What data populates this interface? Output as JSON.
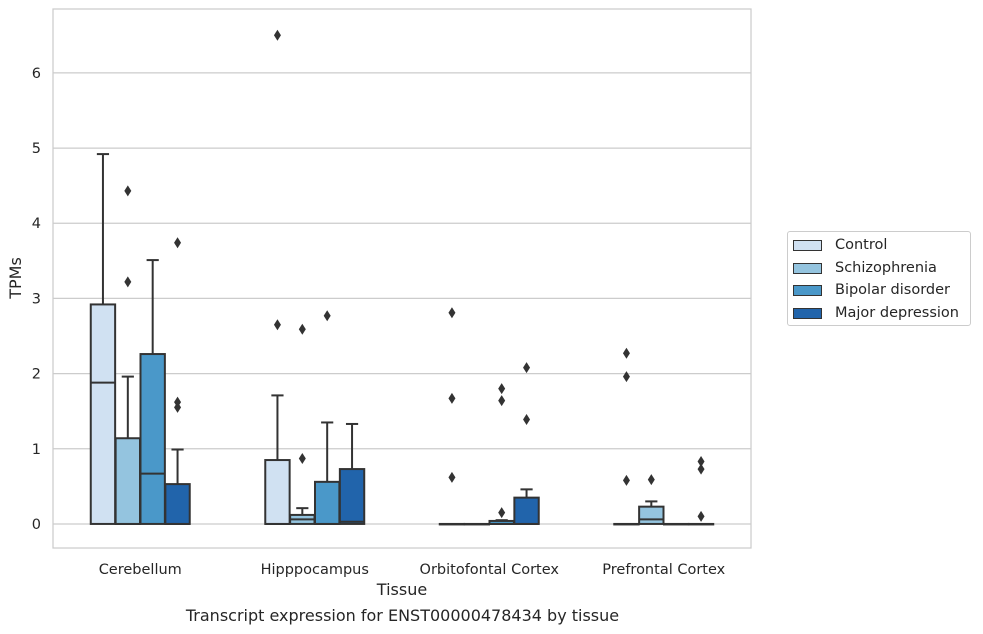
{
  "chart_data": {
    "type": "boxplot",
    "caption": "Transcript expression for ENST00000478434 by tissue",
    "xlabel": "Tissue",
    "ylabel": "TPMs",
    "ylim": [
      -0.32,
      6.85
    ],
    "yticks": [
      "0",
      "1",
      "2",
      "3",
      "4",
      "5",
      "6"
    ],
    "grid": true,
    "legend_position": "right",
    "categories": [
      "Cerebellum",
      "Hipppocampus",
      "Orbitofontal Cortex",
      "Prefrontal Cortex"
    ],
    "series": [
      {
        "name": "Control",
        "color": "#d0e1f2",
        "boxes": [
          {
            "q1": 0,
            "median": 1.88,
            "q3": 2.92,
            "whisker_low": 0,
            "whisker_high": 4.92,
            "outliers": []
          },
          {
            "q1": 0,
            "median": 0,
            "q3": 0.85,
            "whisker_low": 0,
            "whisker_high": 1.71,
            "outliers": [
              2.65,
              6.5
            ]
          },
          {
            "q1": 0,
            "median": 0,
            "q3": 0,
            "whisker_low": 0,
            "whisker_high": 0,
            "outliers": [
              0.62,
              1.67,
              2.81
            ]
          },
          {
            "q1": 0,
            "median": 0,
            "q3": 0,
            "whisker_low": 0,
            "whisker_high": 0,
            "outliers": [
              0.58,
              1.96,
              2.27
            ]
          }
        ]
      },
      {
        "name": "Schizophrenia",
        "color": "#94c4df",
        "boxes": [
          {
            "q1": 0,
            "median": 0,
            "q3": 1.14,
            "whisker_low": 0,
            "whisker_high": 1.96,
            "outliers": [
              3.22,
              4.43
            ]
          },
          {
            "q1": 0,
            "median": 0.06,
            "q3": 0.12,
            "whisker_low": 0,
            "whisker_high": 0.21,
            "outliers": [
              0.87,
              2.59
            ]
          },
          {
            "q1": 0,
            "median": 0,
            "q3": 0,
            "whisker_low": 0,
            "whisker_high": 0,
            "outliers": []
          },
          {
            "q1": 0,
            "median": 0.06,
            "q3": 0.23,
            "whisker_low": 0,
            "whisker_high": 0.3,
            "outliers": [
              0.59
            ]
          }
        ]
      },
      {
        "name": "Bipolar disorder",
        "color": "#4a98c9",
        "boxes": [
          {
            "q1": 0,
            "median": 0.67,
            "q3": 2.26,
            "whisker_low": 0,
            "whisker_high": 3.51,
            "outliers": []
          },
          {
            "q1": 0,
            "median": 0,
            "q3": 0.56,
            "whisker_low": 0,
            "whisker_high": 1.35,
            "outliers": [
              2.77
            ]
          },
          {
            "q1": 0,
            "median": 0,
            "q3": 0.04,
            "whisker_low": 0,
            "whisker_high": 0.05,
            "outliers": [
              0.15,
              1.64,
              1.8
            ]
          },
          {
            "q1": 0,
            "median": 0,
            "q3": 0,
            "whisker_low": 0,
            "whisker_high": 0,
            "outliers": []
          }
        ]
      },
      {
        "name": "Major depression",
        "color": "#2164ab",
        "boxes": [
          {
            "q1": 0,
            "median": 0,
            "q3": 0.53,
            "whisker_low": 0,
            "whisker_high": 0.99,
            "outliers": [
              1.55,
              1.62,
              3.74
            ]
          },
          {
            "q1": 0,
            "median": 0.03,
            "q3": 0.73,
            "whisker_low": 0,
            "whisker_high": 1.33,
            "outliers": []
          },
          {
            "q1": 0,
            "median": 0,
            "q3": 0.35,
            "whisker_low": 0,
            "whisker_high": 0.46,
            "outliers": [
              1.39,
              2.08
            ]
          },
          {
            "q1": 0,
            "median": 0,
            "q3": 0,
            "whisker_low": 0,
            "whisker_high": 0,
            "outliers": [
              0.1,
              0.73,
              0.83
            ]
          }
        ]
      }
    ]
  }
}
